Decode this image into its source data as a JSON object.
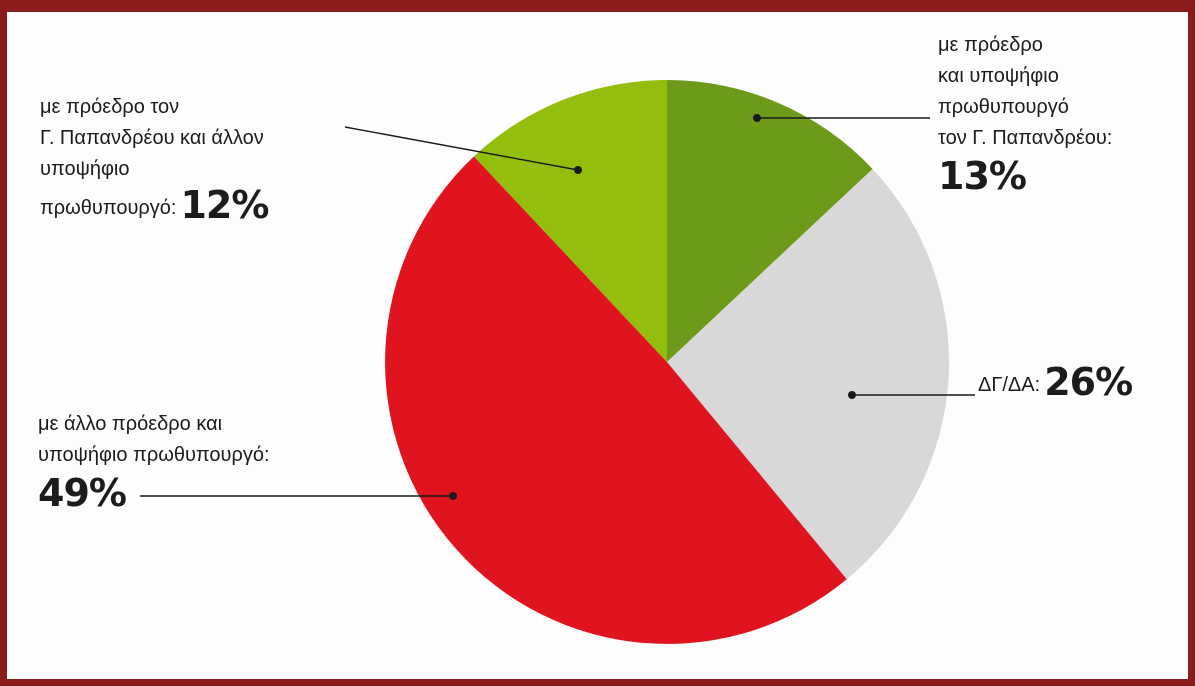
{
  "chart_data": {
    "type": "pie",
    "start_angle_deg": 0,
    "direction": "clockwise",
    "slices": [
      {
        "label": "με πρόεδρο και υποψήφιο πρωθυπουργό τον Γ. Παπανδρέου",
        "value": 13,
        "value_label": "13%",
        "color": "#6e9a19"
      },
      {
        "label": "ΔΓ/ΔΑ",
        "value": 26,
        "value_label": "26%",
        "color": "#d8d8d8"
      },
      {
        "label": "με άλλο πρόεδρο και υποψήφιο πρωθυπουργό",
        "value": 49,
        "value_label": "49%",
        "color": "#e0141f"
      },
      {
        "label": "με πρόεδρο τον Γ. Παπανδρέου και άλλον υποψήφιο πρωθυπουργό",
        "value": 12,
        "value_label": "12%",
        "color": "#94be0e"
      }
    ]
  },
  "labels": {
    "top_right": {
      "lines": [
        "με πρόεδρο",
        "και υποψήφιο",
        "πρωθυπουργό",
        "τον Γ. Παπανδρέου:"
      ],
      "pct": "13%"
    },
    "right": {
      "text": "ΔΓ/ΔΑ:",
      "pct": "26%"
    },
    "left_bottom": {
      "lines": [
        "με άλλο πρόεδρο και",
        "υποψήφιο πρωθυπουργό:"
      ],
      "pct": "49%"
    },
    "top_left": {
      "lines": [
        "με πρόεδρο τον",
        "Γ. Παπανδρέου και άλλον",
        "υποψήφιο"
      ],
      "last_line": "πρωθυπουργό:",
      "pct": "12%"
    }
  }
}
